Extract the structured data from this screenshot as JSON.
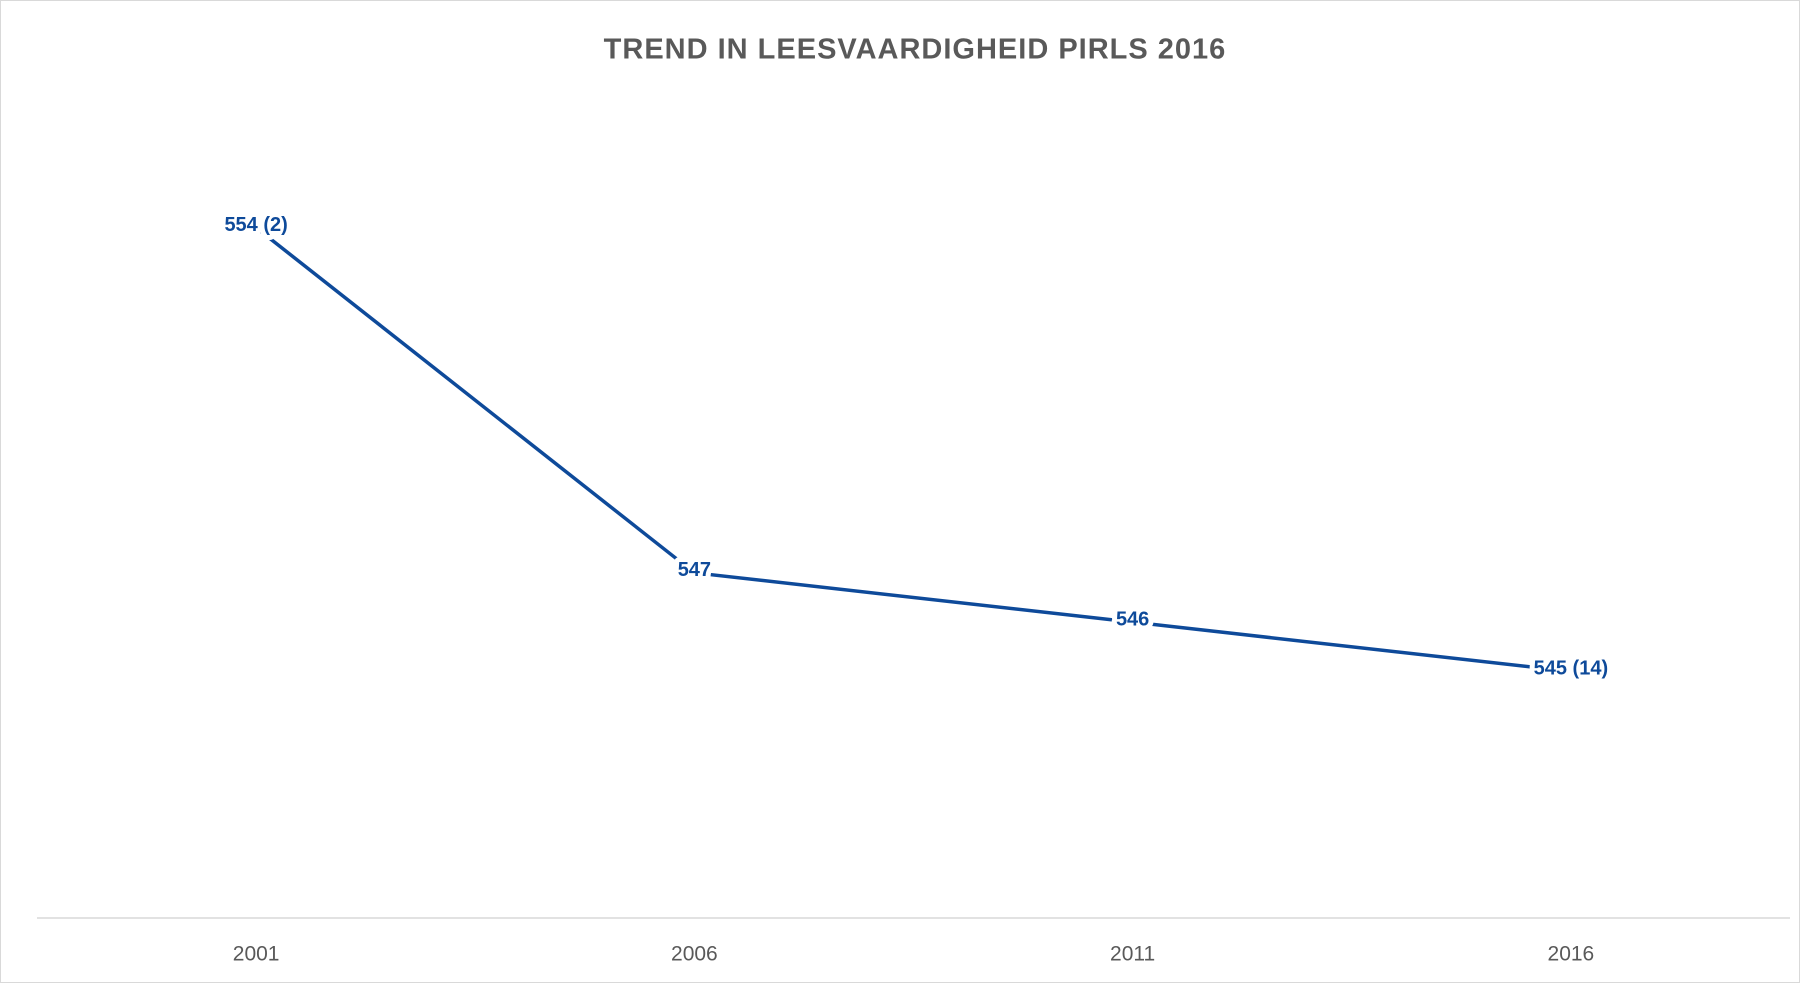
{
  "chart_data": {
    "type": "line",
    "title": "TREND IN LEESVAARDIGHEID PIRLS 2016",
    "categories": [
      "2001",
      "2006",
      "2011",
      "2016"
    ],
    "series": [
      {
        "color": "#0e4a9a",
        "values": [
          554,
          547,
          546,
          545
        ],
        "value_labels": [
          "554 (2)",
          "547",
          "546",
          "545 (14)"
        ]
      }
    ],
    "ylim": [
      540,
      556
    ]
  }
}
